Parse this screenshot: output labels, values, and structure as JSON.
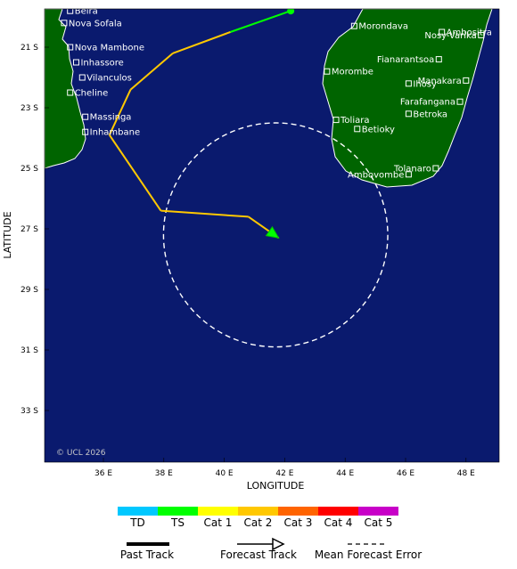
{
  "map": {
    "copyright": "© UCL 2026",
    "x_axis_title": "LONGITUDE",
    "y_axis_title": "LATITUDE",
    "x_ticks": [
      "36 E",
      "38 E",
      "40 E",
      "42 E",
      "44 E",
      "46 E",
      "48 E"
    ],
    "y_ticks": [
      "21 S",
      "23 S",
      "25 S",
      "27 S",
      "29 S",
      "31 S",
      "33 S"
    ],
    "ocean_color": "#0a1a6e",
    "land_color": "#006400",
    "error_cone": {
      "center_lon": 41.7,
      "center_lat": -27.2,
      "radius_deg": 3.7
    }
  },
  "places": [
    {
      "name": "Beira",
      "lon": 34.9,
      "lat": -19.8
    },
    {
      "name": "Nova Sofala",
      "lon": 34.7,
      "lat": -20.2
    },
    {
      "name": "Nova Mambone",
      "lon": 34.9,
      "lat": -21.0
    },
    {
      "name": "Inhassore",
      "lon": 35.1,
      "lat": -21.5
    },
    {
      "name": "Vilanculos",
      "lon": 35.3,
      "lat": -22.0
    },
    {
      "name": "Cheline",
      "lon": 34.9,
      "lat": -22.5
    },
    {
      "name": "Massinga",
      "lon": 35.4,
      "lat": -23.3
    },
    {
      "name": "Inhambane",
      "lon": 35.4,
      "lat": -23.8
    },
    {
      "name": "Morondava",
      "lon": 44.3,
      "lat": -20.3
    },
    {
      "name": "Ambositra",
      "lon": 47.2,
      "lat": -20.5
    },
    {
      "name": "Nosy-Varika",
      "lon": 48.5,
      "lat": -20.6
    },
    {
      "name": "Fianarantsoa",
      "lon": 47.1,
      "lat": -21.4
    },
    {
      "name": "Morombe",
      "lon": 43.4,
      "lat": -21.8
    },
    {
      "name": "Manakara",
      "lon": 48.0,
      "lat": -22.1
    },
    {
      "name": "Ihosy",
      "lon": 46.1,
      "lat": -22.2
    },
    {
      "name": "Farafangana",
      "lon": 47.8,
      "lat": -22.8
    },
    {
      "name": "Betroka",
      "lon": 46.1,
      "lat": -23.2
    },
    {
      "name": "Toliara",
      "lon": 43.7,
      "lat": -23.4
    },
    {
      "name": "Betioky",
      "lon": 44.4,
      "lat": -23.7
    },
    {
      "name": "Tolanaro",
      "lon": 47.0,
      "lat": -25.0
    },
    {
      "name": "Ambovombe",
      "lon": 46.1,
      "lat": -25.2
    }
  ],
  "track": {
    "past": [
      {
        "lon": 42.2,
        "lat": -19.8,
        "cat": "TS"
      },
      {
        "lon": 40.2,
        "lat": -20.5,
        "cat": "TS"
      },
      {
        "lon": 38.3,
        "lat": -21.2,
        "cat": "Cat 1"
      },
      {
        "lon": 36.9,
        "lat": -22.4,
        "cat": "Cat 1"
      },
      {
        "lon": 36.2,
        "lat": -23.9,
        "cat": "Cat 1"
      },
      {
        "lon": 37.9,
        "lat": -26.4,
        "cat": "Cat 1"
      },
      {
        "lon": 40.8,
        "lat": -26.6,
        "cat": "Cat 1"
      }
    ],
    "forecast_end": {
      "lon": 41.8,
      "lat": -27.3
    }
  },
  "legend": {
    "categories": [
      {
        "label": "TD",
        "color": "#00c8ff"
      },
      {
        "label": "TS",
        "color": "#00ff00"
      },
      {
        "label": "Cat 1",
        "color": "#ffff00"
      },
      {
        "label": "Cat 2",
        "color": "#ffc800"
      },
      {
        "label": "Cat 3",
        "color": "#ff6400"
      },
      {
        "label": "Cat 4",
        "color": "#ff0000"
      },
      {
        "label": "Cat 5",
        "color": "#c800c8"
      }
    ],
    "past_track": "Past Track",
    "forecast_track": "Forecast Track",
    "mean_error": "Mean Forecast Error"
  }
}
